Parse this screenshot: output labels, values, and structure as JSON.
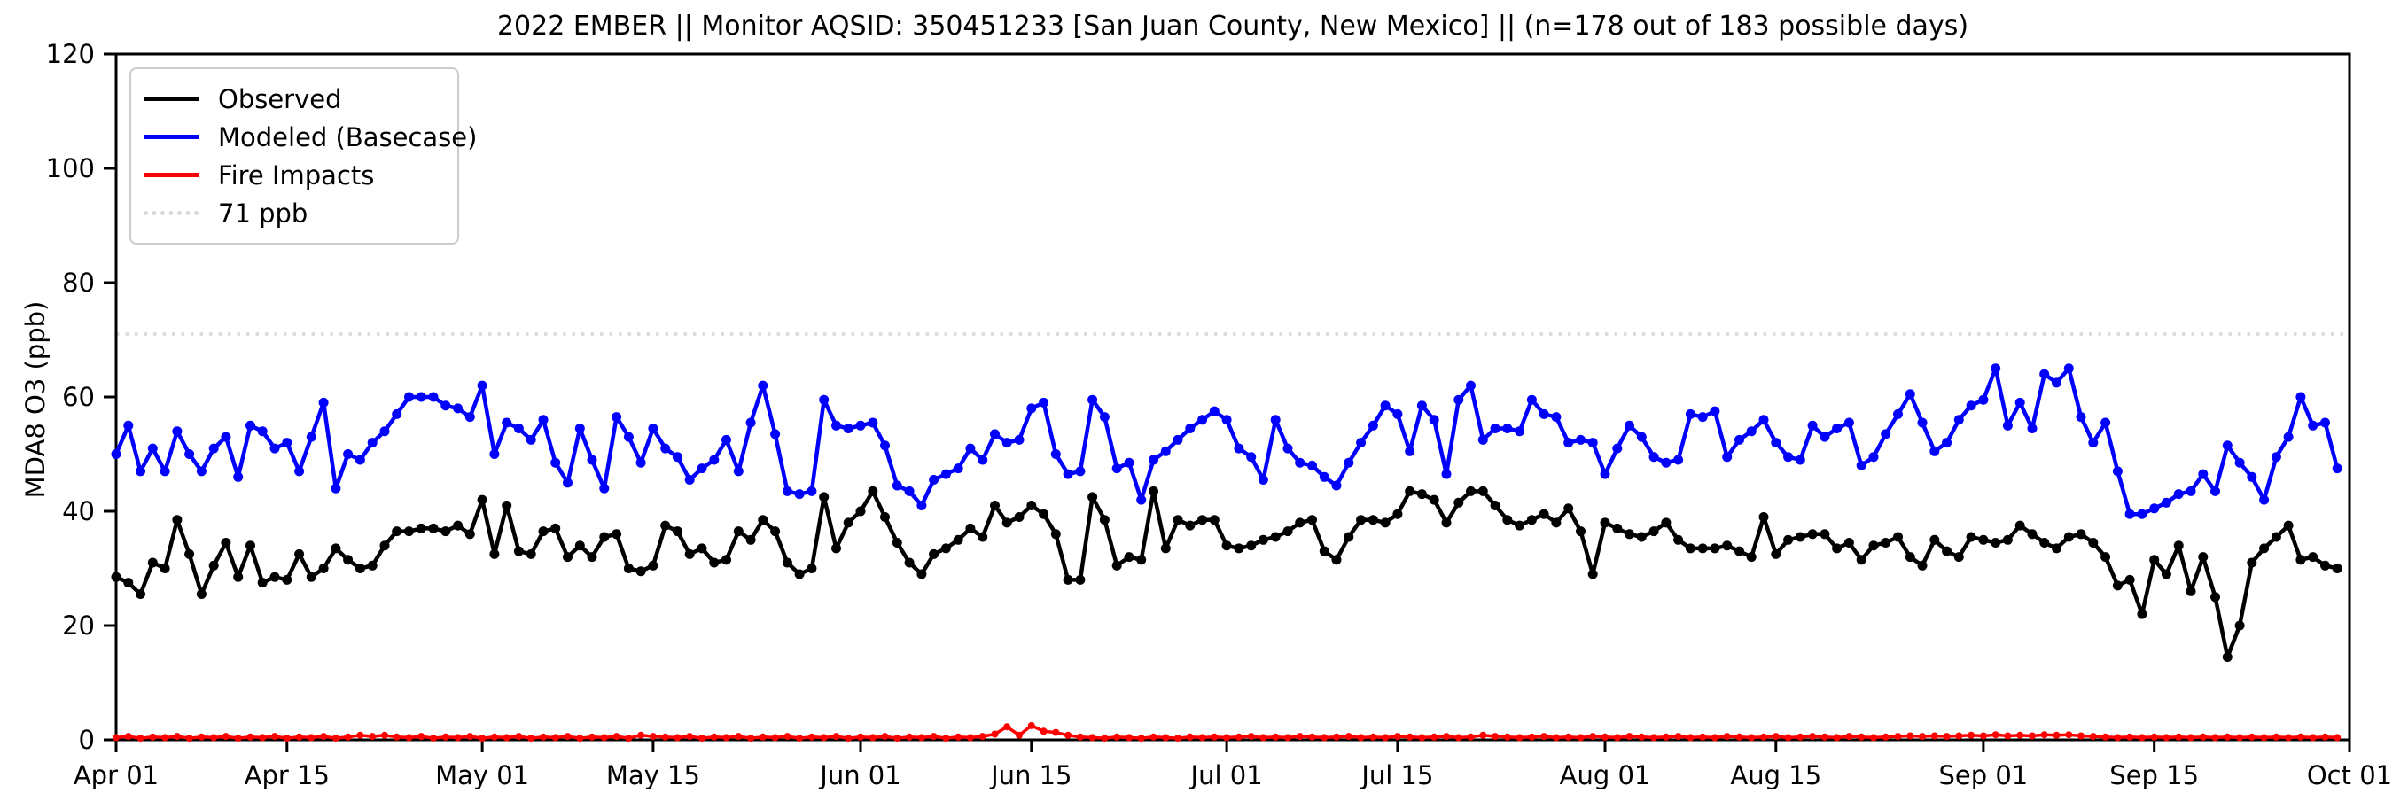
{
  "title": "2022 EMBER || Monitor AQSID: 350451233 [San Juan County, New Mexico] || (n=178 out of 183 possible days)",
  "legend": {
    "items": [
      {
        "label": "Observed",
        "color": "#000000",
        "style": "solid"
      },
      {
        "label": "Modeled (Basecase)",
        "color": "#0000ff",
        "style": "solid"
      },
      {
        "label": "Fire Impacts",
        "color": "#ff0000",
        "style": "solid"
      },
      {
        "label": "71 ppb",
        "color": "#d9d9d9",
        "style": "dotted"
      }
    ]
  },
  "chart_data": {
    "type": "line",
    "title": "2022 EMBER || Monitor AQSID: 350451233 [San Juan County, New Mexico] || (n=178 out of 183 possible days)",
    "ylabel": "MDA8 O3 (ppb)",
    "xlabel": "",
    "ylim": [
      0,
      120
    ],
    "y_ticks": [
      0,
      20,
      40,
      60,
      80,
      100,
      120
    ],
    "x_ticks": [
      {
        "day": 0,
        "label": "Apr 01"
      },
      {
        "day": 14,
        "label": "Apr 15"
      },
      {
        "day": 30,
        "label": "May 01"
      },
      {
        "day": 44,
        "label": "May 15"
      },
      {
        "day": 61,
        "label": "Jun 01"
      },
      {
        "day": 75,
        "label": "Jun 15"
      },
      {
        "day": 91,
        "label": "Jul 01"
      },
      {
        "day": 105,
        "label": "Jul 15"
      },
      {
        "day": 122,
        "label": "Aug 01"
      },
      {
        "day": 136,
        "label": "Aug 15"
      },
      {
        "day": 153,
        "label": "Sep 01"
      },
      {
        "day": 167,
        "label": "Sep 15"
      },
      {
        "day": 183,
        "label": "Oct 01"
      }
    ],
    "x_range_days": 183,
    "start_date": "Apr 01",
    "end_date": "Sep 30",
    "threshold": {
      "value": 71,
      "label": "71 ppb",
      "color": "#d9d9d9"
    },
    "grid": false,
    "legend_position": "upper left",
    "series": [
      {
        "name": "Observed",
        "color": "#000000",
        "marker": true,
        "values": [
          28.5,
          27.5,
          25.5,
          31,
          30,
          38.5,
          32.5,
          25.5,
          30.5,
          34.5,
          28.5,
          34,
          27.5,
          28.5,
          28,
          32.5,
          28.5,
          30,
          33.5,
          31.5,
          30,
          30.5,
          34,
          36.5,
          36.5,
          37,
          37,
          36.5,
          37.5,
          36,
          42,
          32.5,
          41,
          33,
          32.5,
          36.5,
          37,
          32,
          34,
          32,
          35.5,
          36,
          30,
          29.5,
          30.5,
          37.5,
          36.5,
          32.5,
          33.5,
          31,
          31.5,
          36.5,
          35,
          38.5,
          36.5,
          31,
          29,
          30,
          42.5,
          33.5,
          38,
          40,
          43.5,
          39,
          34.5,
          31,
          29,
          32.5,
          33.5,
          35,
          37,
          35.5,
          41,
          38,
          39,
          41,
          39.5,
          36,
          28,
          28,
          42.5,
          38.5,
          30.5,
          32,
          31.5,
          43.5,
          33.5,
          38.5,
          37.5,
          38.5,
          38.5,
          34,
          33.5,
          34,
          35,
          35.5,
          36.5,
          38,
          38.5,
          33,
          31.5,
          35.5,
          38.5,
          38.5,
          38,
          39.5,
          43.5,
          43,
          42,
          38,
          41.5,
          43.5,
          43.5,
          41,
          38.5,
          37.5,
          38.5,
          39.5,
          38,
          40.5,
          36.5,
          29,
          38,
          37,
          36,
          35.5,
          36.5,
          38,
          35,
          33.5,
          33.5,
          33.5,
          34,
          33,
          32,
          39,
          32.5,
          35,
          35.5,
          36,
          36,
          33.5,
          34.5,
          31.5,
          34,
          34.5,
          35.5,
          32,
          30.5,
          35,
          33,
          32,
          35.5,
          35,
          34.5,
          35,
          37.5,
          36,
          34.5,
          33.5,
          35.5,
          36,
          34.5,
          32,
          27,
          28,
          22,
          31.5,
          29,
          34,
          26,
          32,
          25,
          14.5,
          20,
          31,
          33.5,
          35.5,
          37.5,
          31.5,
          32,
          30.5,
          30
        ]
      },
      {
        "name": "Modeled (Basecase)",
        "color": "#0000ff",
        "marker": true,
        "values": [
          50,
          55,
          47,
          51,
          47,
          54,
          50,
          47,
          51,
          53,
          46,
          55,
          54,
          51,
          52,
          47,
          53,
          59,
          44,
          50,
          49,
          52,
          54,
          57,
          60,
          60,
          60,
          58.5,
          58,
          56.5,
          62,
          50,
          55.5,
          54.5,
          52.5,
          56,
          48.5,
          45,
          54.5,
          49,
          44,
          56.5,
          53,
          48.5,
          54.5,
          51,
          49.5,
          45.5,
          47.5,
          49,
          52.5,
          47,
          55.5,
          62,
          53.5,
          43.5,
          43,
          43.5,
          59.5,
          55,
          54.5,
          55,
          55.5,
          51.5,
          44.5,
          43.5,
          41,
          45.5,
          46.5,
          47.5,
          51,
          49,
          53.5,
          52,
          52.5,
          58,
          59,
          50,
          46.5,
          47,
          59.5,
          56.5,
          47.5,
          48.5,
          42,
          49,
          50.5,
          52.5,
          54.5,
          56,
          57.5,
          56,
          51,
          49.5,
          45.5,
          56,
          51,
          48.5,
          48,
          46,
          44.5,
          48.5,
          52,
          55,
          58.5,
          57,
          50.5,
          58.5,
          56,
          46.5,
          59.5,
          62,
          52.5,
          54.5,
          54.5,
          54,
          59.5,
          57,
          56.5,
          52,
          52.5,
          52,
          46.5,
          51,
          55,
          53,
          49.5,
          48.5,
          49,
          57,
          56.5,
          57.5,
          49.5,
          52.5,
          54,
          56,
          52,
          49.5,
          49,
          55,
          53,
          54.5,
          55.5,
          48,
          49.5,
          53.5,
          57,
          60.5,
          55.5,
          50.5,
          52,
          56,
          58.5,
          59.5,
          65,
          55,
          59,
          54.5,
          64,
          62.5,
          65,
          56.5,
          52,
          55.5,
          47,
          39.5,
          39.5,
          40.5,
          41.5,
          43,
          43.5,
          46.5,
          43.5,
          51.5,
          48.5,
          46,
          42,
          49.5,
          53,
          60,
          55,
          55.5,
          47.5
        ]
      },
      {
        "name": "Fire Impacts",
        "color": "#ff0000",
        "marker": true,
        "values": [
          0.4,
          0.6,
          0.3,
          0.5,
          0.4,
          0.6,
          0.3,
          0.5,
          0.4,
          0.6,
          0.3,
          0.5,
          0.4,
          0.6,
          0.3,
          0.5,
          0.4,
          0.6,
          0.3,
          0.5,
          0.8,
          0.6,
          0.8,
          0.5,
          0.4,
          0.6,
          0.3,
          0.5,
          0.4,
          0.6,
          0.3,
          0.5,
          0.4,
          0.6,
          0.3,
          0.5,
          0.4,
          0.6,
          0.3,
          0.5,
          0.4,
          0.6,
          0.3,
          0.8,
          0.6,
          0.5,
          0.4,
          0.6,
          0.3,
          0.5,
          0.4,
          0.6,
          0.3,
          0.5,
          0.4,
          0.6,
          0.3,
          0.5,
          0.4,
          0.6,
          0.3,
          0.5,
          0.4,
          0.6,
          0.3,
          0.5,
          0.4,
          0.6,
          0.3,
          0.5,
          0.4,
          0.6,
          1.0,
          2.3,
          0.8,
          2.5,
          1.5,
          1.3,
          0.8,
          0.5,
          0.4,
          0.3,
          0.5,
          0.4,
          0.3,
          0.5,
          0.4,
          0.3,
          0.5,
          0.4,
          0.5,
          0.4,
          0.5,
          0.6,
          0.4,
          0.5,
          0.4,
          0.6,
          0.5,
          0.4,
          0.5,
          0.6,
          0.4,
          0.5,
          0.4,
          0.6,
          0.5,
          0.4,
          0.5,
          0.6,
          0.4,
          0.5,
          0.8,
          0.6,
          0.5,
          0.4,
          0.5,
          0.6,
          0.4,
          0.5,
          0.4,
          0.6,
          0.5,
          0.4,
          0.6,
          0.5,
          0.4,
          0.5,
          0.6,
          0.4,
          0.5,
          0.4,
          0.6,
          0.5,
          0.4,
          0.5,
          0.6,
          0.4,
          0.5,
          0.6,
          0.5,
          0.4,
          0.6,
          0.5,
          0.4,
          0.5,
          0.6,
          0.7,
          0.6,
          0.7,
          0.6,
          0.7,
          0.8,
          0.7,
          0.9,
          0.7,
          0.8,
          0.7,
          0.9,
          0.8,
          0.9,
          0.7,
          0.6,
          0.5,
          0.4,
          0.5,
          0.4,
          0.5,
          0.4,
          0.5,
          0.4,
          0.5,
          0.4,
          0.5,
          0.4,
          0.5,
          0.4,
          0.5,
          0.4,
          0.5,
          0.4,
          0.5,
          0.4
        ]
      }
    ]
  }
}
